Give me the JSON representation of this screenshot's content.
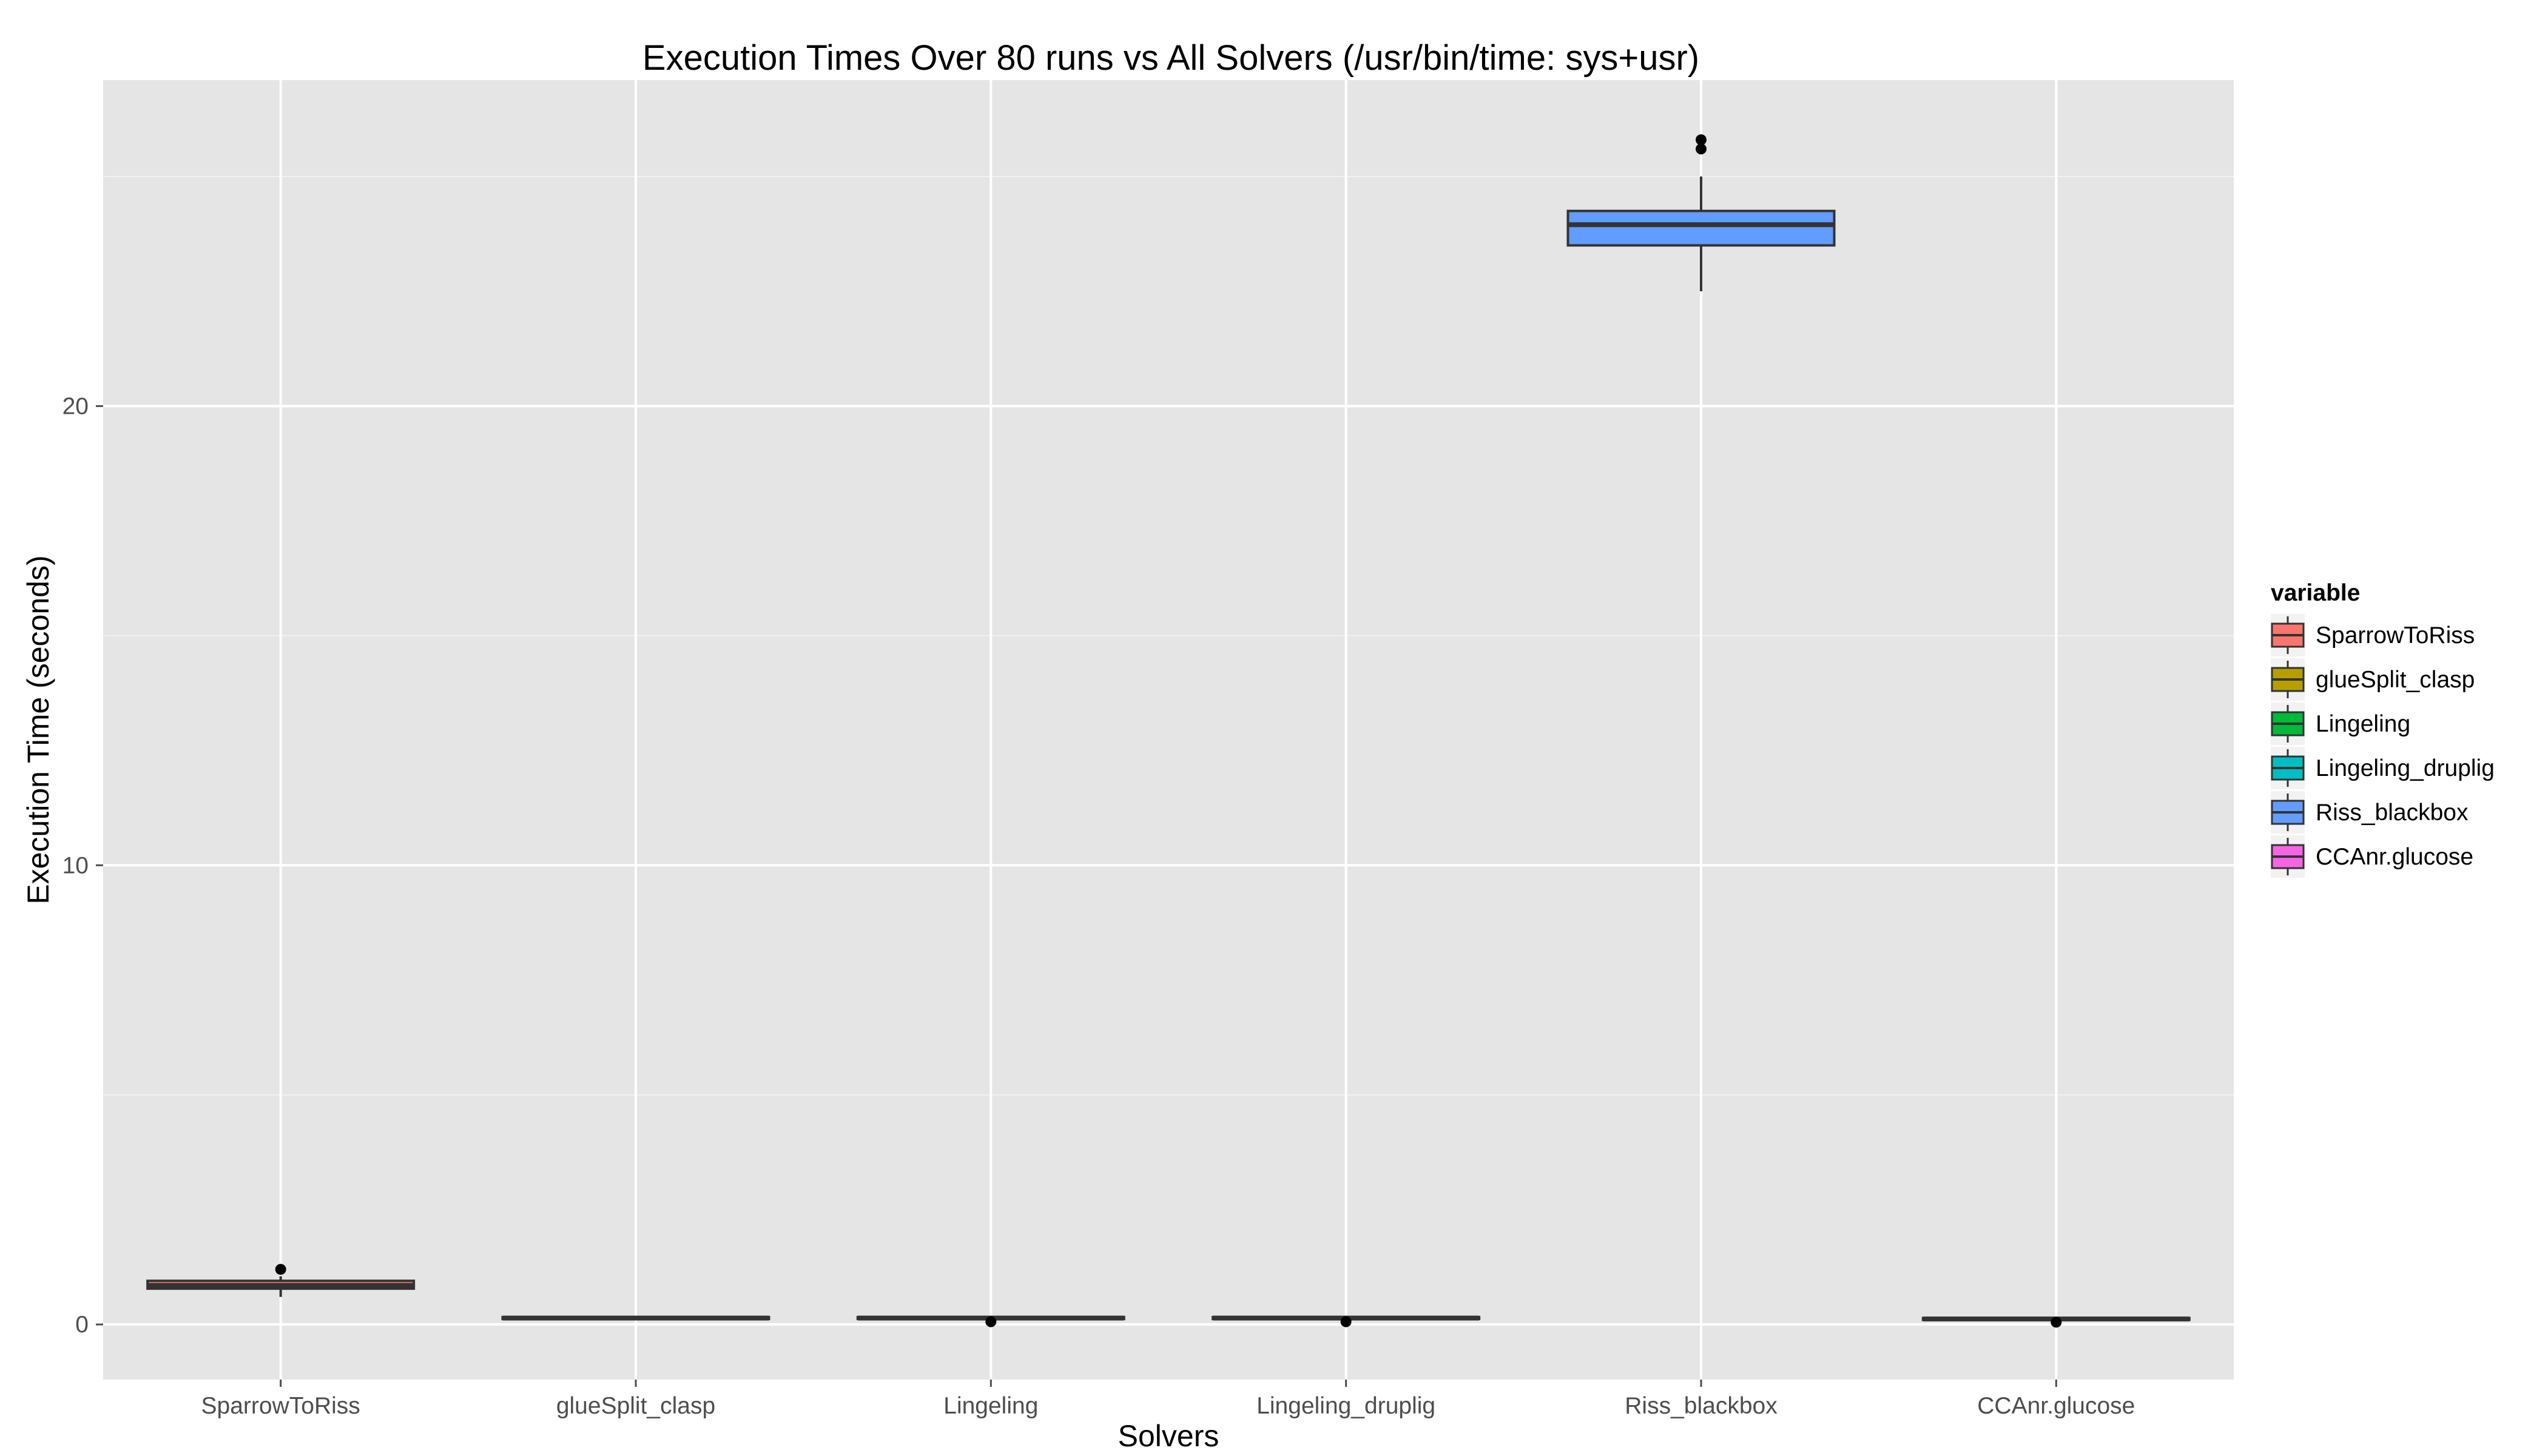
{
  "chart_data": {
    "type": "box",
    "title": "Execution Times Over 80 runs vs All Solvers (/usr/bin/time: sys+usr)",
    "xlabel": "Solvers",
    "ylabel": "Execution Time (seconds)",
    "ylim": [
      -1.2,
      27.1
    ],
    "y_ticks": [
      0,
      10,
      20
    ],
    "y_minor_ticks": [
      5,
      15,
      25
    ],
    "grid": true,
    "legend": {
      "title": "variable",
      "position": "right"
    },
    "categories": [
      "SparrowToRiss",
      "glueSplit_clasp",
      "Lingeling",
      "Lingeling_druplig",
      "Riss_blackbox",
      "CCAnr.glucose"
    ],
    "series": [
      {
        "name": "SparrowToRiss",
        "color": "#F8766D",
        "whisker_low": 0.6,
        "q1": 0.78,
        "median": 0.85,
        "q3": 0.95,
        "whisker_high": 1.05,
        "outliers": [
          1.2
        ]
      },
      {
        "name": "glueSplit_clasp",
        "color": "#B79F00",
        "whisker_low": 0.1,
        "q1": 0.12,
        "median": 0.14,
        "q3": 0.16,
        "whisker_high": 0.18,
        "outliers": []
      },
      {
        "name": "Lingeling",
        "color": "#00BA38",
        "whisker_low": 0.1,
        "q1": 0.12,
        "median": 0.14,
        "q3": 0.16,
        "whisker_high": 0.18,
        "outliers": [
          0.06
        ]
      },
      {
        "name": "Lingeling_druplig",
        "color": "#00BFC4",
        "whisker_low": 0.1,
        "q1": 0.12,
        "median": 0.14,
        "q3": 0.16,
        "whisker_high": 0.18,
        "outliers": [
          0.06
        ]
      },
      {
        "name": "Riss_blackbox",
        "color": "#619CFF",
        "whisker_low": 22.5,
        "q1": 23.5,
        "median": 23.95,
        "q3": 24.25,
        "whisker_high": 25.0,
        "outliers": [
          25.6,
          25.8
        ]
      },
      {
        "name": "CCAnr.glucose",
        "color": "#F564E3",
        "whisker_low": 0.08,
        "q1": 0.1,
        "median": 0.12,
        "q3": 0.14,
        "whisker_high": 0.16,
        "outliers": [
          0.05
        ]
      }
    ]
  }
}
